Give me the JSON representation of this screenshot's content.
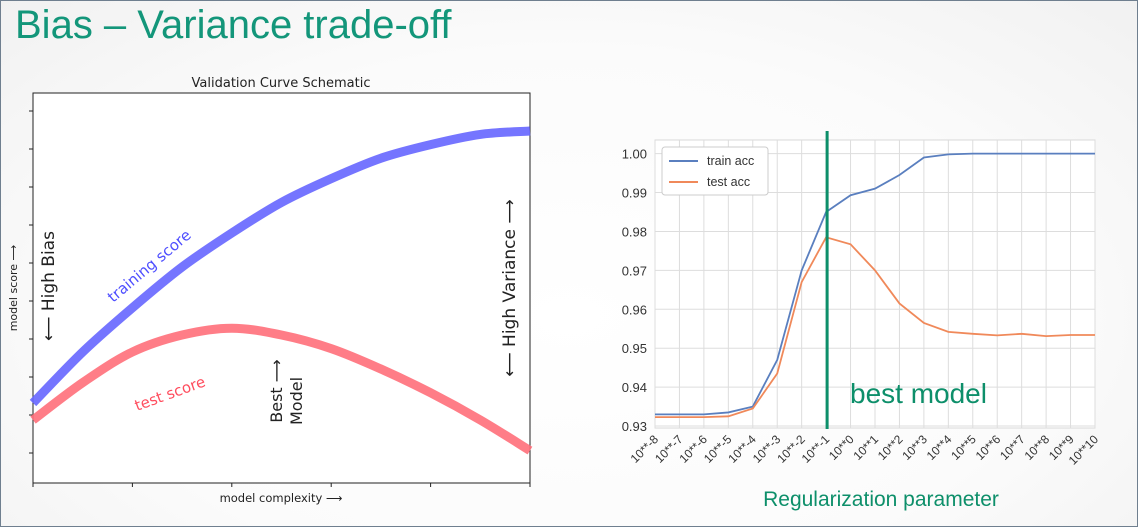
{
  "slide": {
    "title": "Bias – Variance trade-off"
  },
  "chart_data": [
    {
      "type": "line",
      "title": "Validation Curve Schematic",
      "xlabel": "model complexity  ⟶",
      "ylabel": "model score  ⟶",
      "xlim": [
        0,
        1
      ],
      "ylim": [
        0,
        1
      ],
      "grid": false,
      "legend": "none",
      "series": [
        {
          "name": "training score",
          "color": "#6666ff",
          "x": [
            0.0,
            0.1,
            0.2,
            0.3,
            0.4,
            0.5,
            0.6,
            0.7,
            0.8,
            0.9,
            1.0
          ],
          "y": [
            0.2,
            0.35,
            0.48,
            0.6,
            0.7,
            0.79,
            0.86,
            0.92,
            0.96,
            0.99,
            1.0
          ]
        },
        {
          "name": "test score",
          "color": "#ff6f7a",
          "x": [
            0.0,
            0.1,
            0.2,
            0.3,
            0.4,
            0.5,
            0.6,
            0.7,
            0.8,
            0.9,
            1.0
          ],
          "y": [
            0.15,
            0.26,
            0.35,
            0.4,
            0.42,
            0.4,
            0.36,
            0.3,
            0.23,
            0.15,
            0.06
          ]
        }
      ],
      "annotations": {
        "high_bias": "⟵  High Bias",
        "high_variance": "⟵  High Variance  ⟶",
        "best_model_line1": "Best ⟶",
        "best_model_line2": "Model"
      }
    },
    {
      "type": "line",
      "title": "",
      "xlabel": "Regularization parameter",
      "ylabel": "",
      "categories": [
        "10**-8",
        "10**-7",
        "10**-6",
        "10**-5",
        "10**-4",
        "10**-3",
        "10**-2",
        "10**-1",
        "10**0",
        "10**1",
        "10**2",
        "10**3",
        "10**4",
        "10**5",
        "10**6",
        "10**7",
        "10**8",
        "10**9",
        "10**10"
      ],
      "yticks": [
        "0.93",
        "0.94",
        "0.95",
        "0.96",
        "0.97",
        "0.98",
        "0.99",
        "1.00"
      ],
      "ylim": [
        0.9295,
        1.0035
      ],
      "grid": true,
      "legend": "top-left",
      "series": [
        {
          "name": "train acc",
          "color": "#5a7fbf",
          "values": [
            0.933,
            0.933,
            0.933,
            0.9335,
            0.935,
            0.947,
            0.97,
            0.985,
            0.9893,
            0.991,
            0.9945,
            0.999,
            0.9998,
            1.0,
            1.0,
            1.0,
            1.0,
            1.0,
            1.0
          ]
        },
        {
          "name": "test acc",
          "color": "#f0895a",
          "values": [
            0.9323,
            0.9323,
            0.9323,
            0.9325,
            0.9345,
            0.9435,
            0.967,
            0.9785,
            0.9767,
            0.97,
            0.9615,
            0.9565,
            0.9542,
            0.9537,
            0.9533,
            0.9537,
            0.9531,
            0.9534,
            0.9534
          ]
        }
      ],
      "annotations": {
        "best_model": "best model"
      },
      "best_index": 7,
      "highlight_color": "#0d8f6a"
    }
  ]
}
